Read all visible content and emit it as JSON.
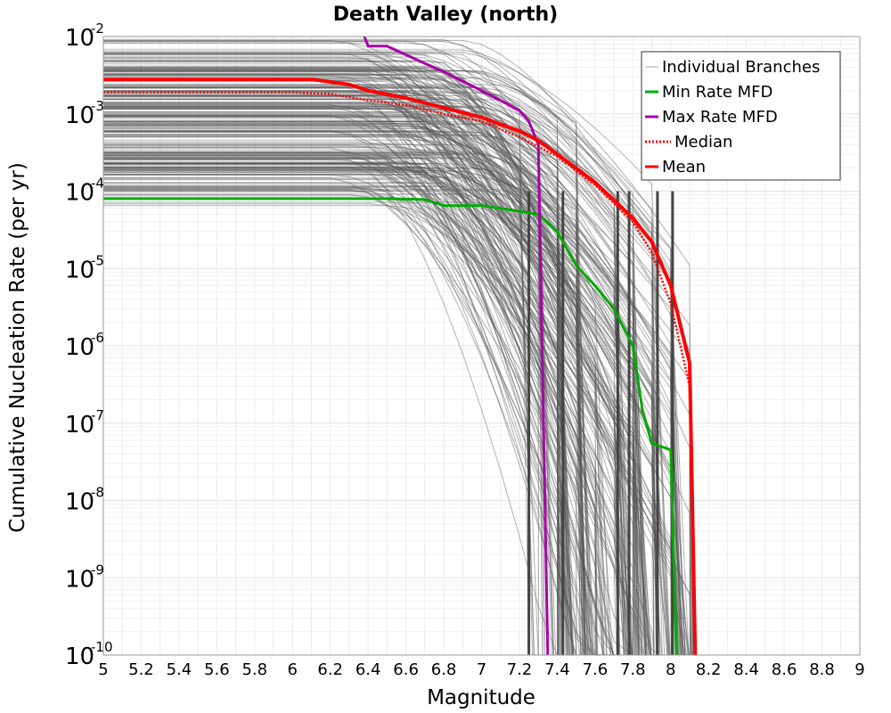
{
  "chart_data": {
    "type": "line",
    "title": "Death Valley (north)",
    "xlabel": "Magnitude",
    "ylabel": "Cumulative Nucleation Rate (per yr)",
    "xlim": [
      5,
      9
    ],
    "ylim": [
      1e-10,
      0.01
    ],
    "yscale": "log",
    "grid": true,
    "legend_position": "top-right",
    "x_ticks": [
      "5",
      "5.2",
      "5.4",
      "5.6",
      "5.8",
      "6",
      "6.2",
      "6.4",
      "6.6",
      "6.8",
      "7",
      "7.2",
      "7.4",
      "7.6",
      "7.8",
      "8",
      "8.2",
      "8.4",
      "8.6",
      "8.8",
      "9"
    ],
    "y_ticks": [
      {
        "value": 0.01,
        "base": "10",
        "exp": "-2"
      },
      {
        "value": 0.001,
        "base": "10",
        "exp": "-3"
      },
      {
        "value": 0.0001,
        "base": "10",
        "exp": "-4"
      },
      {
        "value": 1e-05,
        "base": "10",
        "exp": "-5"
      },
      {
        "value": 1e-06,
        "base": "10",
        "exp": "-6"
      },
      {
        "value": 1e-07,
        "base": "10",
        "exp": "-7"
      },
      {
        "value": 1e-08,
        "base": "10",
        "exp": "-8"
      },
      {
        "value": 1e-09,
        "base": "10",
        "exp": "-9"
      },
      {
        "value": 1e-10,
        "base": "10",
        "exp": "-10"
      }
    ],
    "series": [
      {
        "name": "Min Rate MFD",
        "color": "#00aa00",
        "style": "solid",
        "x": [
          5.0,
          5.5,
          6.0,
          6.5,
          6.7,
          6.8,
          7.0,
          7.1,
          7.2,
          7.3,
          7.4,
          7.5,
          7.6,
          7.7,
          7.8,
          7.85,
          7.9,
          8.0,
          8.03
        ],
        "y": [
          8e-05,
          8e-05,
          8e-05,
          8e-05,
          7.8e-05,
          6.5e-05,
          6.5e-05,
          6e-05,
          5.5e-05,
          5e-05,
          3e-05,
          1.1e-05,
          6e-06,
          3e-06,
          1e-06,
          1.5e-07,
          5.5e-08,
          4.5e-08,
          1e-10
        ]
      },
      {
        "name": "Max Rate MFD",
        "color": "#aa00aa",
        "style": "solid",
        "x": [
          6.38,
          6.4,
          6.5,
          6.7,
          6.8,
          7.0,
          7.1,
          7.2,
          7.25,
          7.3,
          7.35
        ],
        "y": [
          0.01,
          0.0075,
          0.0075,
          0.0045,
          0.0035,
          0.002,
          0.0015,
          0.0011,
          0.0008,
          0.0004,
          1e-10
        ]
      },
      {
        "name": "Median",
        "color": "#ff0000",
        "style": "dotted",
        "x": [
          5.0,
          5.5,
          6.0,
          6.2,
          6.4,
          6.6,
          6.8,
          7.0,
          7.2,
          7.4,
          7.6,
          7.8,
          7.9,
          8.0,
          8.1,
          8.13
        ],
        "y": [
          0.0019,
          0.0019,
          0.0019,
          0.0018,
          0.0015,
          0.0013,
          0.001,
          0.0008,
          0.0005,
          0.00028,
          0.00012,
          4e-05,
          1.6e-05,
          3.5e-06,
          3e-07,
          1e-10
        ]
      },
      {
        "name": "Mean",
        "color": "#ff0000",
        "style": "solid",
        "x": [
          5.0,
          5.5,
          6.0,
          6.1,
          6.3,
          6.4,
          6.6,
          6.8,
          7.0,
          7.2,
          7.3,
          7.4,
          7.6,
          7.8,
          7.9,
          8.0,
          8.1,
          8.13
        ],
        "y": [
          0.0028,
          0.0028,
          0.0028,
          0.0028,
          0.0024,
          0.002,
          0.0016,
          0.0012,
          0.0009,
          0.0006,
          0.00045,
          0.0003,
          0.00013,
          4.5e-05,
          2.2e-05,
          6e-06,
          6e-07,
          1e-10
        ]
      }
    ],
    "branches": {
      "name": "Individual Branches",
      "color": "#555555"
    },
    "legend": [
      {
        "label": "Individual Branches",
        "color": "#aaaaaa",
        "style": "thin"
      },
      {
        "label": "Min Rate MFD",
        "color": "#00aa00",
        "style": "solid"
      },
      {
        "label": "Max Rate MFD",
        "color": "#aa00aa",
        "style": "solid"
      },
      {
        "label": "Median",
        "color": "#ff0000",
        "style": "dotted"
      },
      {
        "label": "Mean",
        "color": "#ff0000",
        "style": "solid"
      }
    ]
  }
}
